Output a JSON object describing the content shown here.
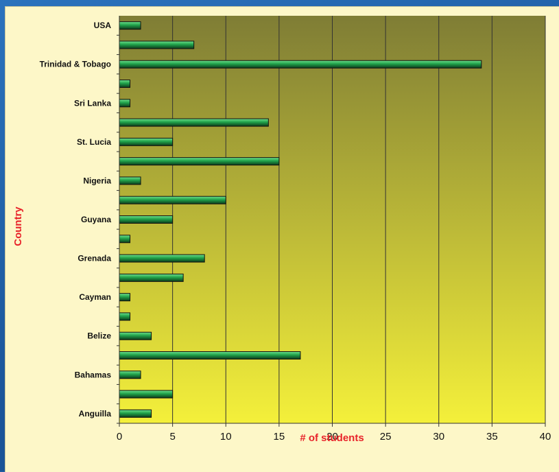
{
  "chart_data": {
    "type": "bar",
    "orientation": "horizontal",
    "title": "",
    "xlabel": "# of students",
    "ylabel": "Country",
    "xlim": [
      0,
      40
    ],
    "xticks": [
      0,
      5,
      10,
      15,
      20,
      25,
      30,
      35,
      40
    ],
    "grid": "vertical",
    "categories": [
      "Anguilla",
      "",
      "Bahamas",
      "",
      "Belize",
      "",
      "Cayman",
      "",
      "Grenada",
      "",
      "Guyana",
      "",
      "Nigeria",
      "",
      "St. Lucia",
      "",
      "Sri Lanka",
      "",
      "Trinidad & Tobago",
      "",
      "USA"
    ],
    "values": [
      3,
      5,
      2,
      17,
      3,
      1,
      1,
      6,
      8,
      1,
      5,
      10,
      2,
      15,
      5,
      14,
      1,
      1,
      34,
      7,
      2
    ],
    "colors": {
      "bar": "#1fa14a",
      "bar_highlight": "#6fe08c",
      "bar_edge": "#0d3a1a",
      "plot_top": "#7f7d35",
      "plot_bottom": "#f4f03a",
      "axis_title": "#e8232a",
      "background": "#1f5fa6"
    }
  }
}
